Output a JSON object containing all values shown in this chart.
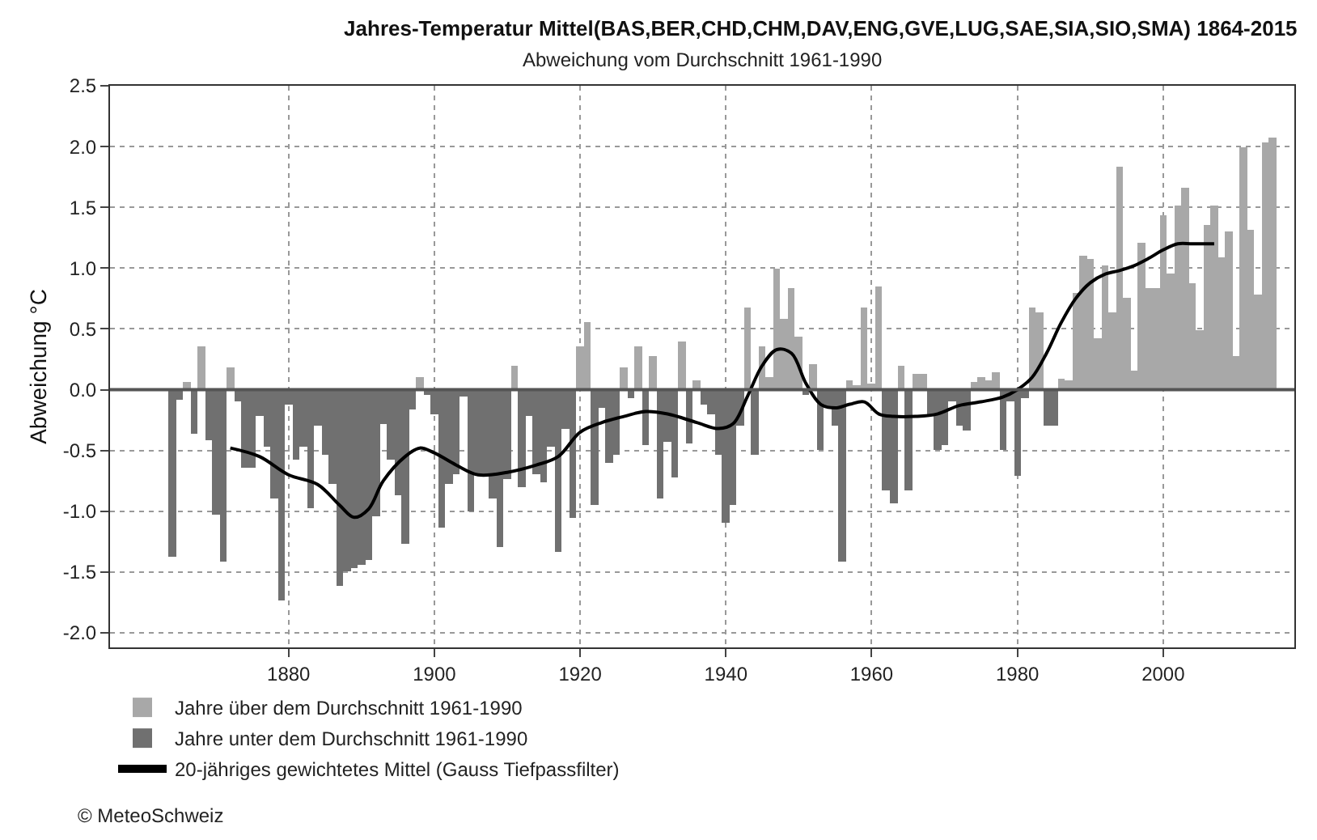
{
  "chart_data": {
    "type": "bar",
    "title": "Jahres-Temperatur Mittel(BAS,BER,CHD,CHM,DAV,ENG,GVE,LUG,SAE,SIA,SIO,SMA) 1864-2015",
    "subtitle": "Abweichung vom Durchschnitt 1961-1990",
    "ylabel": "Abweichung °C",
    "x": [
      1864,
      1865,
      1866,
      1867,
      1868,
      1869,
      1870,
      1871,
      1872,
      1873,
      1874,
      1875,
      1876,
      1877,
      1878,
      1879,
      1880,
      1881,
      1882,
      1883,
      1884,
      1885,
      1886,
      1887,
      1888,
      1889,
      1890,
      1891,
      1892,
      1893,
      1894,
      1895,
      1896,
      1897,
      1898,
      1899,
      1900,
      1901,
      1902,
      1903,
      1904,
      1905,
      1906,
      1907,
      1908,
      1909,
      1910,
      1911,
      1912,
      1913,
      1914,
      1915,
      1916,
      1917,
      1918,
      1919,
      1920,
      1921,
      1922,
      1923,
      1924,
      1925,
      1926,
      1927,
      1928,
      1929,
      1930,
      1931,
      1932,
      1933,
      1934,
      1935,
      1936,
      1937,
      1938,
      1939,
      1940,
      1941,
      1942,
      1943,
      1944,
      1945,
      1946,
      1947,
      1948,
      1949,
      1950,
      1951,
      1952,
      1953,
      1954,
      1955,
      1956,
      1957,
      1958,
      1959,
      1960,
      1961,
      1962,
      1963,
      1964,
      1965,
      1966,
      1967,
      1968,
      1969,
      1970,
      1971,
      1972,
      1973,
      1974,
      1975,
      1976,
      1977,
      1978,
      1979,
      1980,
      1981,
      1982,
      1983,
      1984,
      1985,
      1986,
      1987,
      1988,
      1989,
      1990,
      1991,
      1992,
      1993,
      1994,
      1995,
      1996,
      1997,
      1998,
      1999,
      2000,
      2001,
      2002,
      2003,
      2004,
      2005,
      2006,
      2007,
      2008,
      2009,
      2010,
      2011,
      2012,
      2013,
      2014,
      2015
    ],
    "series": [
      {
        "name": "Jahre über dem Durchschnitt 1961-1990",
        "color": "#a8a8a8",
        "values": [
          null,
          null,
          0.07,
          null,
          0.35,
          null,
          null,
          null,
          0.19,
          null,
          null,
          null,
          null,
          null,
          null,
          null,
          null,
          null,
          null,
          null,
          null,
          null,
          null,
          null,
          null,
          null,
          null,
          null,
          null,
          null,
          null,
          null,
          null,
          null,
          0.1,
          null,
          null,
          null,
          null,
          null,
          null,
          null,
          null,
          null,
          null,
          null,
          null,
          0.2,
          null,
          null,
          null,
          null,
          null,
          null,
          null,
          null,
          0.36,
          0.56,
          null,
          null,
          null,
          null,
          0.19,
          null,
          0.36,
          null,
          0.27,
          null,
          null,
          null,
          0.39,
          null,
          0.08,
          null,
          null,
          null,
          null,
          null,
          null,
          0.67,
          null,
          0.36,
          0.11,
          1.0,
          0.58,
          0.83,
          0.44,
          null,
          0.21,
          null,
          null,
          null,
          null,
          0.08,
          0.04,
          0.68,
          0.05,
          0.85,
          null,
          null,
          0.2,
          null,
          0.13,
          0.13,
          null,
          null,
          null,
          null,
          null,
          null,
          0.07,
          0.1,
          0.08,
          0.15,
          null,
          null,
          null,
          null,
          0.68,
          0.63,
          null,
          null,
          0.09,
          0.08,
          0.8,
          1.1,
          1.08,
          0.42,
          1.02,
          0.64,
          1.84,
          0.75,
          0.16,
          1.21,
          0.84,
          0.84,
          1.44,
          0.95,
          1.52,
          1.66,
          0.88,
          0.49,
          1.35,
          1.51,
          1.09,
          1.3,
          0.27,
          2.0,
          1.31,
          0.78,
          2.04,
          2.08
        ]
      },
      {
        "name": "Jahre unter dem Durchschnitt 1961-1990",
        "color": "#707070",
        "values": [
          -1.38,
          -0.08,
          null,
          -0.36,
          null,
          -0.42,
          -1.03,
          -1.42,
          null,
          -0.09,
          -0.64,
          -0.64,
          -0.22,
          -0.47,
          -0.89,
          -1.74,
          -0.12,
          -0.58,
          -0.47,
          -0.98,
          -0.29,
          -0.53,
          -0.78,
          -1.62,
          -1.49,
          -1.47,
          -1.44,
          -1.4,
          -1.04,
          -0.28,
          -0.58,
          -0.87,
          -1.27,
          -0.16,
          null,
          -0.04,
          -0.2,
          -1.13,
          -0.78,
          -0.69,
          -0.05,
          -1.0,
          -0.69,
          -0.69,
          -0.89,
          -1.3,
          -0.73,
          null,
          -0.8,
          -0.22,
          -0.69,
          -0.76,
          -0.47,
          -1.33,
          -0.32,
          -1.05,
          null,
          null,
          -0.95,
          -0.15,
          -0.6,
          -0.53,
          null,
          -0.07,
          null,
          -0.46,
          null,
          -0.89,
          -0.43,
          -0.72,
          null,
          -0.44,
          null,
          -0.12,
          -0.2,
          -0.53,
          -1.1,
          -0.95,
          -0.29,
          null,
          -0.53,
          null,
          null,
          null,
          null,
          null,
          null,
          -0.04,
          null,
          -0.5,
          -0.15,
          -0.3,
          -1.42,
          null,
          null,
          null,
          null,
          null,
          -0.83,
          -0.93,
          null,
          -0.83,
          null,
          null,
          -0.22,
          -0.5,
          -0.46,
          -0.1,
          -0.3,
          -0.33,
          null,
          null,
          null,
          null,
          -0.5,
          -0.1,
          -0.71,
          -0.07,
          null,
          null,
          -0.3,
          -0.3,
          null,
          null,
          null,
          null,
          null,
          null,
          null,
          null,
          null,
          null,
          null,
          null,
          null,
          null,
          null,
          null,
          null,
          null,
          null,
          null,
          null,
          null,
          null,
          null,
          null,
          null,
          null,
          null,
          null,
          null
        ]
      },
      {
        "name": "20-jähriges gewichtetes Mittel (Gauss Tiefpassfilter)",
        "type": "line",
        "color": "#000000",
        "x": [
          1872,
          1876,
          1880,
          1884,
          1887,
          1889,
          1891,
          1893,
          1896,
          1898,
          1900,
          1903,
          1906,
          1910,
          1914,
          1917,
          1920,
          1923,
          1926,
          1929,
          1932,
          1936,
          1939,
          1941,
          1943,
          1945,
          1947,
          1949,
          1951,
          1953,
          1955,
          1957,
          1959,
          1961,
          1963,
          1966,
          1969,
          1972,
          1975,
          1978,
          1980,
          1982,
          1984,
          1986,
          1988,
          1990,
          1992,
          1994,
          1996,
          1998,
          2000,
          2002,
          2004,
          2007
        ],
        "values": [
          -0.48,
          -0.55,
          -0.7,
          -0.78,
          -0.95,
          -1.05,
          -0.98,
          -0.75,
          -0.55,
          -0.48,
          -0.52,
          -0.62,
          -0.7,
          -0.68,
          -0.62,
          -0.55,
          -0.35,
          -0.27,
          -0.22,
          -0.18,
          -0.2,
          -0.27,
          -0.32,
          -0.28,
          -0.05,
          0.2,
          0.33,
          0.3,
          0.05,
          -0.12,
          -0.15,
          -0.12,
          -0.1,
          -0.2,
          -0.22,
          -0.22,
          -0.2,
          -0.13,
          -0.1,
          -0.06,
          0.0,
          0.1,
          0.3,
          0.55,
          0.75,
          0.88,
          0.95,
          0.98,
          1.02,
          1.08,
          1.15,
          1.2,
          1.2,
          1.2
        ]
      }
    ],
    "xlim": [
      1855.5,
      2018
    ],
    "xticks": [
      1880,
      1900,
      1920,
      1940,
      1960,
      1980,
      2000
    ],
    "ylim": [
      -2.12,
      2.5
    ],
    "yticks": [
      {
        "value": -2.0,
        "label": "-2.0"
      },
      {
        "value": -1.5,
        "label": "-1.5"
      },
      {
        "value": -1.0,
        "label": "-1.0"
      },
      {
        "value": -0.5,
        "label": "-0.5"
      },
      {
        "value": 0.0,
        "label": "0.0"
      },
      {
        "value": 0.5,
        "label": "0.5"
      },
      {
        "value": 1.0,
        "label": "1.0"
      },
      {
        "value": 1.5,
        "label": "1.5"
      },
      {
        "value": 2.0,
        "label": "2.0"
      },
      {
        "value": 2.5,
        "label": "2.5"
      }
    ],
    "ref_lines": [
      {
        "axis": "y",
        "value": 0,
        "color": "#555555",
        "line_style": "solid"
      }
    ],
    "grid": true,
    "legend": "bottom",
    "annotations": [
      "© MeteoSchweiz"
    ]
  }
}
